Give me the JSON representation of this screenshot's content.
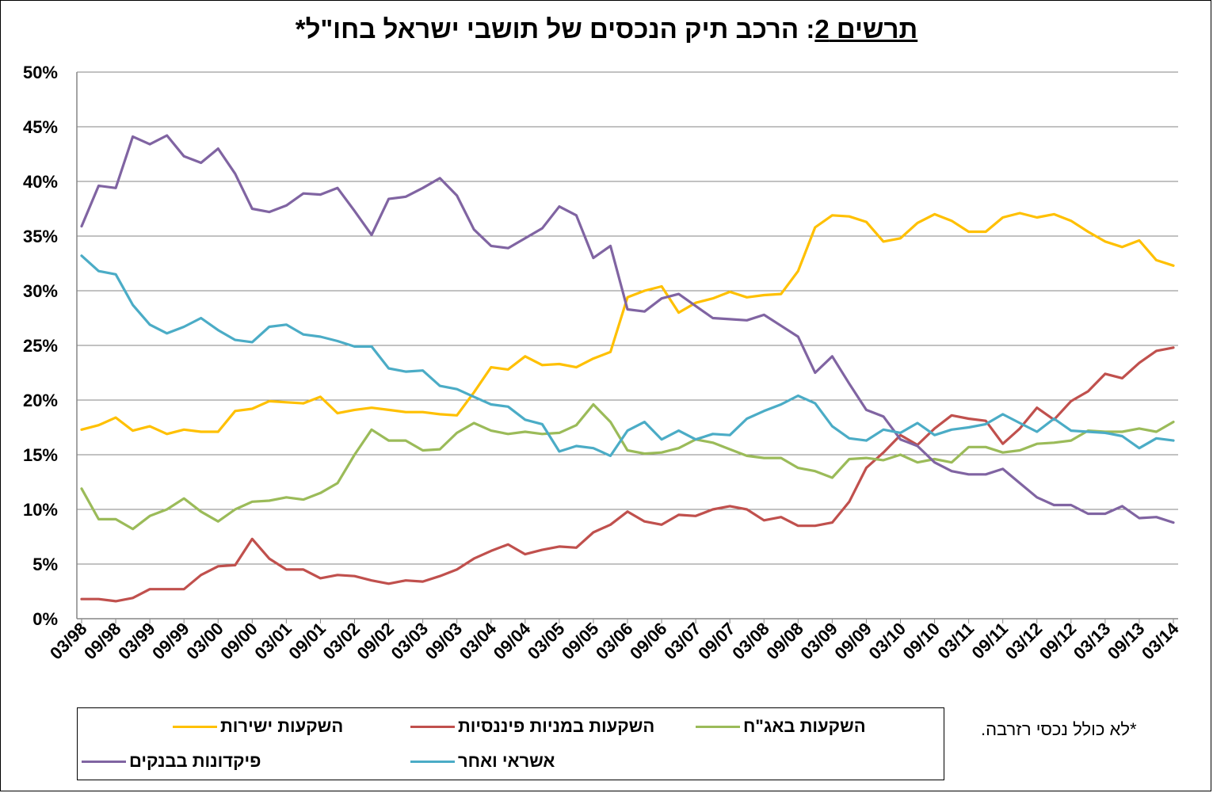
{
  "title": {
    "prefix": "תרשים 2",
    "rest": ": הרכב תיק הנכסים של תושבי ישראל בחו\"ל*"
  },
  "footnote": "*לא כולל נכסי רזרבה.",
  "chart_data": {
    "type": "line",
    "title": "תרשים 2: הרכב תיק הנכסים של תושבי ישראל בחו\"ל*",
    "ylim": [
      0,
      50
    ],
    "yticks": [
      "0%",
      "5%",
      "10%",
      "15%",
      "20%",
      "25%",
      "30%",
      "35%",
      "40%",
      "45%",
      "50%"
    ],
    "grid": true,
    "legend_position": "bottom",
    "x_labels": [
      "03/98",
      "09/98",
      "03/99",
      "09/99",
      "03/00",
      "09/00",
      "03/01",
      "09/01",
      "03/02",
      "09/02",
      "03/03",
      "09/03",
      "03/04",
      "09/04",
      "03/05",
      "09/05",
      "03/06",
      "09/06",
      "03/07",
      "09/07",
      "03/08",
      "09/08",
      "03/09",
      "09/09",
      "03/10",
      "09/10",
      "03/11",
      "09/11",
      "03/12",
      "09/12",
      "03/13",
      "09/13",
      "03/14"
    ],
    "x": [
      "03/98",
      "06/98",
      "09/98",
      "12/98",
      "03/99",
      "06/99",
      "09/99",
      "12/99",
      "03/00",
      "06/00",
      "09/00",
      "12/00",
      "03/01",
      "06/01",
      "09/01",
      "12/01",
      "03/02",
      "06/02",
      "09/02",
      "12/02",
      "03/03",
      "06/03",
      "09/03",
      "12/03",
      "03/04",
      "06/04",
      "09/04",
      "12/04",
      "03/05",
      "06/05",
      "09/05",
      "12/05",
      "03/06",
      "06/06",
      "09/06",
      "12/06",
      "03/07",
      "06/07",
      "09/07",
      "12/07",
      "03/08",
      "06/08",
      "09/08",
      "12/08",
      "03/09",
      "06/09",
      "09/09",
      "12/09",
      "03/10",
      "06/10",
      "09/10",
      "12/10",
      "03/11",
      "06/11",
      "09/11",
      "12/11",
      "03/12",
      "06/12",
      "09/12",
      "12/12",
      "03/13",
      "06/13",
      "09/13",
      "12/13",
      "03/14"
    ],
    "series": [
      {
        "name": "השקעות ישירות",
        "color": "#FFC000",
        "values": [
          17.3,
          17.7,
          18.4,
          17.2,
          17.6,
          16.9,
          17.3,
          17.1,
          17.1,
          19.0,
          19.2,
          19.9,
          19.8,
          19.7,
          20.3,
          18.8,
          19.1,
          19.3,
          19.1,
          18.9,
          18.9,
          18.7,
          18.6,
          20.7,
          23.0,
          22.8,
          24.0,
          23.2,
          23.3,
          23.0,
          23.8,
          24.4,
          29.4,
          30.0,
          30.4,
          28.0,
          28.9,
          29.3,
          29.9,
          29.4,
          29.6,
          29.7,
          31.8,
          35.8,
          36.9,
          36.8,
          36.3,
          34.5,
          34.8,
          36.2,
          37.0,
          36.4,
          35.4,
          35.4,
          36.7,
          37.1,
          36.7,
          37.0,
          36.4,
          35.4,
          34.5,
          34.0,
          34.6,
          32.8,
          32.3
        ]
      },
      {
        "name": "השקעות במניות פיננסיות",
        "color": "#C0504D",
        "values": [
          1.8,
          1.8,
          1.6,
          1.9,
          2.7,
          2.7,
          2.7,
          4.0,
          4.8,
          4.9,
          7.3,
          5.5,
          4.5,
          4.5,
          3.7,
          4.0,
          3.9,
          3.5,
          3.2,
          3.5,
          3.4,
          3.9,
          4.5,
          5.5,
          6.2,
          6.8,
          5.9,
          6.3,
          6.6,
          6.5,
          7.9,
          8.6,
          9.8,
          8.9,
          8.6,
          9.5,
          9.4,
          10.0,
          10.3,
          10.0,
          9.0,
          9.3,
          8.5,
          8.5,
          8.8,
          10.7,
          13.8,
          15.2,
          16.8,
          15.9,
          17.4,
          18.6,
          18.3,
          18.1,
          16.0,
          17.4,
          19.3,
          18.2,
          19.9,
          20.8,
          22.4,
          22.0,
          23.4,
          24.5,
          24.8
        ]
      },
      {
        "name": "השקעות באג\"ח",
        "color": "#9BBB59",
        "values": [
          11.9,
          9.1,
          9.1,
          8.2,
          9.4,
          10.0,
          11.0,
          9.8,
          8.9,
          10.0,
          10.7,
          10.8,
          11.1,
          10.9,
          11.5,
          12.4,
          15.0,
          17.3,
          16.3,
          16.3,
          15.4,
          15.5,
          17.0,
          17.9,
          17.2,
          16.9,
          17.1,
          16.9,
          17.0,
          17.7,
          19.6,
          18.0,
          15.4,
          15.1,
          15.2,
          15.6,
          16.4,
          16.1,
          15.5,
          14.9,
          14.7,
          14.7,
          13.8,
          13.5,
          12.9,
          14.6,
          14.7,
          14.5,
          15.0,
          14.3,
          14.6,
          14.3,
          15.7,
          15.7,
          15.2,
          15.4,
          16.0,
          16.1,
          16.3,
          17.2,
          17.1,
          17.1,
          17.4,
          17.1,
          18.0
        ]
      },
      {
        "name": "פיקדונות בבנקים",
        "color": "#8064A2",
        "values": [
          35.9,
          39.6,
          39.4,
          44.1,
          43.4,
          44.2,
          42.3,
          41.7,
          43.0,
          40.7,
          37.5,
          37.2,
          37.8,
          38.9,
          38.8,
          39.4,
          37.3,
          35.1,
          38.4,
          38.6,
          39.4,
          40.3,
          38.7,
          35.6,
          34.1,
          33.9,
          34.8,
          35.7,
          37.7,
          36.9,
          33.0,
          34.1,
          28.3,
          28.1,
          29.3,
          29.7,
          28.6,
          27.5,
          27.4,
          27.3,
          27.8,
          26.8,
          25.8,
          22.5,
          24.0,
          21.5,
          19.1,
          18.5,
          16.4,
          15.8,
          14.3,
          13.5,
          13.2,
          13.2,
          13.7,
          12.4,
          11.1,
          10.4,
          10.4,
          9.6,
          9.6,
          10.3,
          9.2,
          9.3,
          8.8
        ]
      },
      {
        "name": "אשראי ואחר",
        "color": "#4BACC6",
        "values": [
          33.2,
          31.8,
          31.5,
          28.7,
          26.9,
          26.1,
          26.7,
          27.5,
          26.4,
          25.5,
          25.3,
          26.7,
          26.9,
          26.0,
          25.8,
          25.4,
          24.9,
          24.9,
          22.9,
          22.6,
          22.7,
          21.3,
          21.0,
          20.3,
          19.6,
          19.4,
          18.2,
          17.8,
          15.3,
          15.8,
          15.6,
          14.9,
          17.2,
          18.0,
          16.4,
          17.2,
          16.4,
          16.9,
          16.8,
          18.3,
          19.0,
          19.6,
          20.4,
          19.7,
          17.6,
          16.5,
          16.3,
          17.3,
          17.0,
          17.9,
          16.8,
          17.3,
          17.5,
          17.8,
          18.7,
          17.9,
          17.1,
          18.3,
          17.2,
          17.1,
          17.0,
          16.7,
          15.6,
          16.5,
          16.3
        ]
      }
    ]
  },
  "legend": {
    "items": [
      {
        "label": "השקעות ישירות",
        "color": "#FFC000"
      },
      {
        "label": "השקעות במניות פיננסיות",
        "color": "#C0504D"
      },
      {
        "label": "השקעות באג\"ח",
        "color": "#9BBB59"
      },
      {
        "label": "פיקדונות בבנקים",
        "color": "#8064A2"
      },
      {
        "label": "אשראי ואחר",
        "color": "#4BACC6"
      }
    ]
  }
}
